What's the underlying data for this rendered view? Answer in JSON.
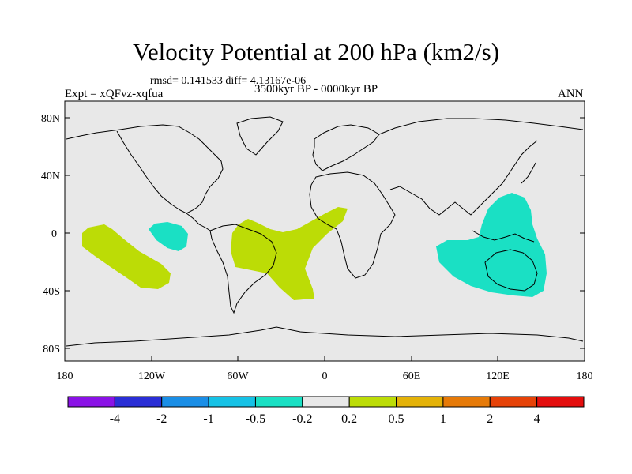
{
  "title": "Velocity Potential at 200 hPa (km2/s)",
  "stats_line": "rmsd= 0.141533 diff= 4.13167e-06",
  "left_label": "Expt = xQFvz-xqfua",
  "center_label": "3500kyr BP - 0000kyr BP",
  "right_label": "ANN",
  "lat_ticks": [
    "80N",
    "40N",
    "0",
    "40S",
    "80S"
  ],
  "lon_ticks": [
    "180",
    "120W",
    "60W",
    "0",
    "60E",
    "120E",
    "180"
  ],
  "colorbar": {
    "colors": [
      "#8a12e6",
      "#2a2ed6",
      "#1a8ee6",
      "#16c2e6",
      "#1ae0c4",
      "#e8e8e8",
      "#bcdc06",
      "#e4b208",
      "#e67a08",
      "#e64208",
      "#e40e0e"
    ],
    "labels": [
      "-4",
      "-2",
      "-1",
      "-0.5",
      "-0.2",
      "0.2",
      "0.5",
      "1",
      "2",
      "4"
    ]
  },
  "colors": {
    "ocean_land_bg": "#e8e8e8",
    "negative_anomaly": "#1ae0c4",
    "positive_anomaly": "#bcdc06",
    "coastline": "#000000"
  }
}
